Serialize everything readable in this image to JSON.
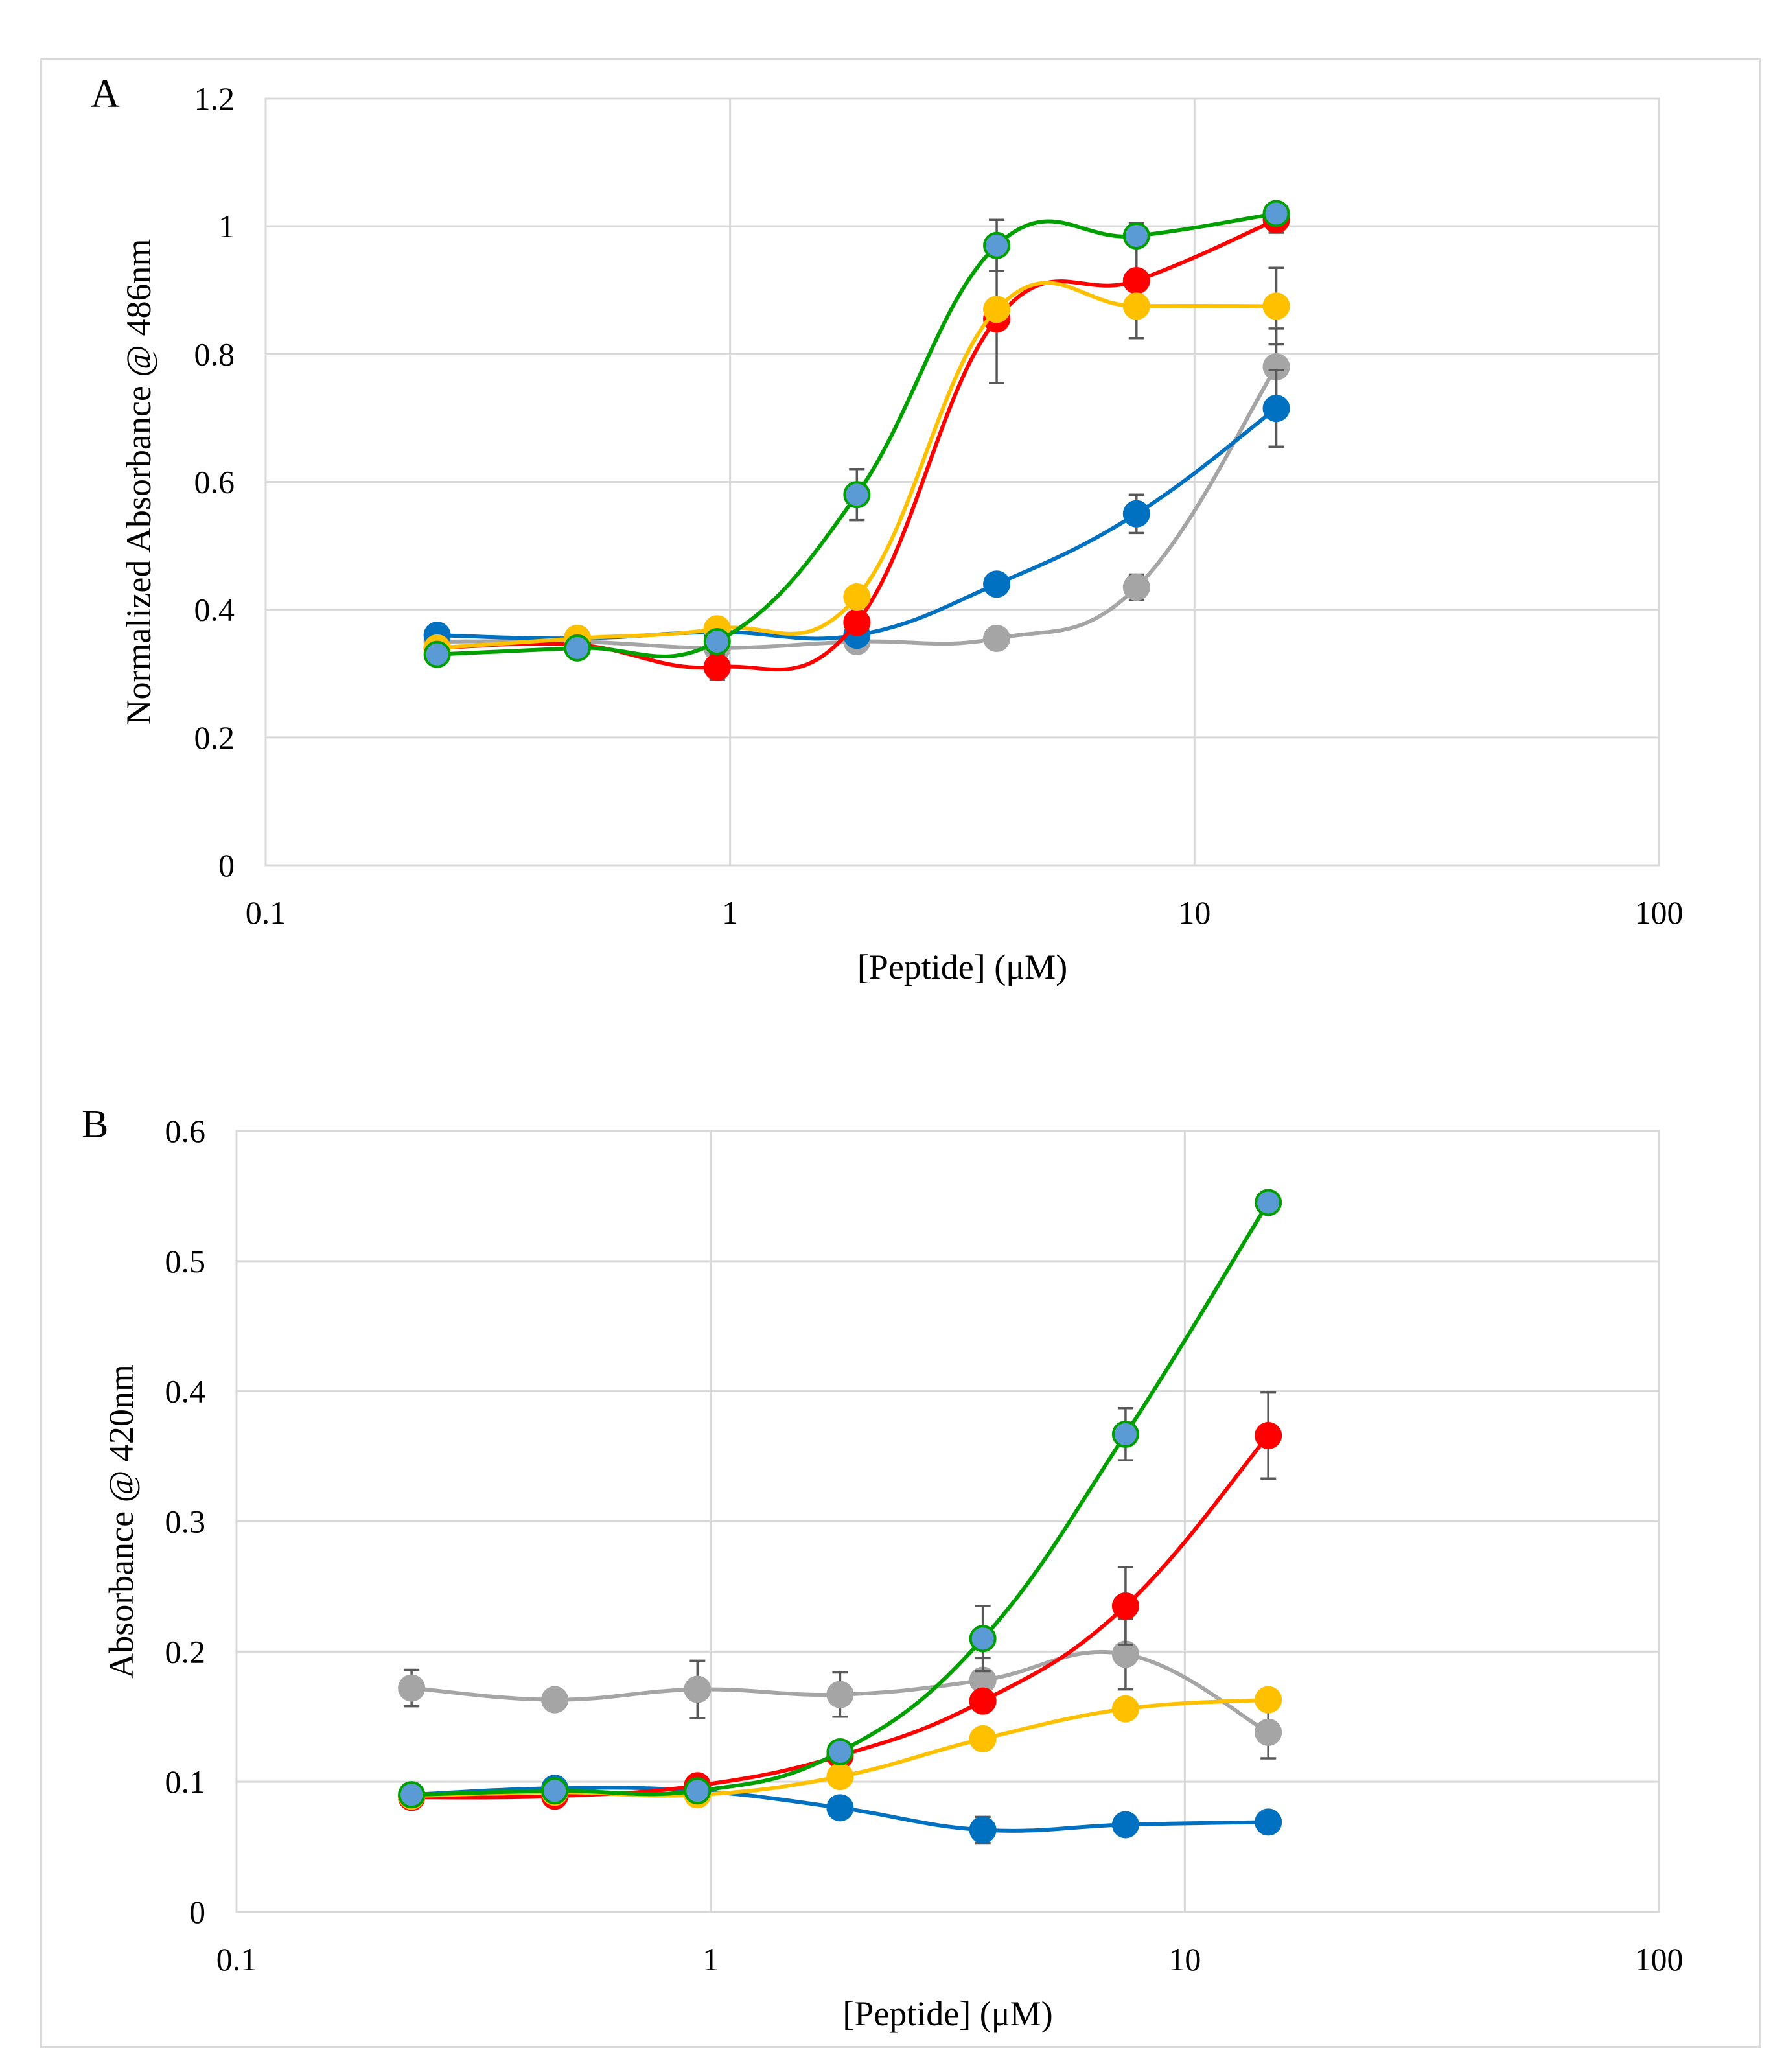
{
  "chart_data": [
    {
      "panel": "A",
      "type": "line",
      "title": "",
      "xlabel": "[Peptide]  (μM)",
      "ylabel": "Normalized  Absorbance @ 486nm",
      "xscale": "log",
      "xlim": [
        0.1,
        100
      ],
      "ylim": [
        0,
        1.2
      ],
      "xticks": [
        0.1,
        1,
        10,
        100
      ],
      "xtick_labels": [
        "0.1",
        "1",
        "10",
        "100"
      ],
      "yticks": [
        0,
        0.2,
        0.4,
        0.6,
        0.8,
        1,
        1.2
      ],
      "ytick_labels": [
        "0",
        "0.2",
        "0.4",
        "0.6",
        "0.8",
        "1",
        "1.2"
      ],
      "grid": true,
      "legend": "none",
      "x": [
        0.234,
        0.469,
        0.938,
        1.875,
        3.75,
        7.5,
        15
      ],
      "series": [
        {
          "name": "gray",
          "color": "#a5a5a5",
          "marker_edge": "#a5a5a5",
          "values": [
            0.35,
            0.35,
            0.34,
            0.35,
            0.355,
            0.435,
            0.78
          ],
          "errors": [
            0,
            0,
            0,
            0,
            0,
            0.02,
            0.06
          ]
        },
        {
          "name": "blue",
          "color": "#0070c0",
          "marker_edge": "#0070c0",
          "values": [
            0.36,
            0.355,
            0.365,
            0.36,
            0.44,
            0.55,
            0.715
          ],
          "errors": [
            0,
            0,
            0,
            0,
            0,
            0.03,
            0.06
          ]
        },
        {
          "name": "red",
          "color": "#ff0000",
          "marker_edge": "#ff0000",
          "values": [
            0.34,
            0.345,
            0.31,
            0.38,
            0.855,
            0.915,
            1.01
          ],
          "errors": [
            0,
            0,
            0.02,
            0,
            0.1,
            0.09,
            0.02
          ]
        },
        {
          "name": "yellow",
          "color": "#ffc000",
          "marker_edge": "#ffc000",
          "values": [
            0.34,
            0.355,
            0.37,
            0.42,
            0.87,
            0.875,
            0.875
          ],
          "errors": [
            0,
            0,
            0,
            0,
            0,
            0,
            0.06
          ]
        },
        {
          "name": "green",
          "color": "#00a000",
          "marker_fill": "#5b9bd5",
          "marker_edge": "#00a000",
          "values": [
            0.33,
            0.34,
            0.35,
            0.58,
            0.97,
            0.985,
            1.02
          ],
          "errors": [
            0,
            0,
            0,
            0.04,
            0.04,
            0.015,
            0
          ]
        }
      ]
    },
    {
      "panel": "B",
      "type": "line",
      "title": "",
      "xlabel": "[Peptide]  (μM)",
      "ylabel": "Absorbance @ 420nm",
      "xscale": "log",
      "xlim": [
        0.1,
        100
      ],
      "ylim": [
        0,
        0.6
      ],
      "xticks": [
        0.1,
        1,
        10,
        100
      ],
      "xtick_labels": [
        "0.1",
        "1",
        "10",
        "100"
      ],
      "yticks": [
        0,
        0.1,
        0.2,
        0.3,
        0.4,
        0.5,
        0.6
      ],
      "ytick_labels": [
        "0",
        "0.1",
        "0.2",
        "0.3",
        "0.4",
        "0.5",
        "0.6"
      ],
      "grid": true,
      "legend": "none",
      "x": [
        0.234,
        0.469,
        0.938,
        1.875,
        3.75,
        7.5,
        15
      ],
      "series": [
        {
          "name": "gray",
          "color": "#a5a5a5",
          "marker_edge": "#a5a5a5",
          "values": [
            0.172,
            0.163,
            0.171,
            0.167,
            0.178,
            0.198,
            0.138
          ],
          "errors": [
            0.014,
            0,
            0.022,
            0.017,
            0.017,
            0.027,
            0.02
          ]
        },
        {
          "name": "blue",
          "color": "#0070c0",
          "marker_edge": "#0070c0",
          "values": [
            0.09,
            0.095,
            0.093,
            0.08,
            0.063,
            0.067,
            0.069
          ],
          "errors": [
            0,
            0,
            0,
            0,
            0.01,
            0,
            0.006
          ]
        },
        {
          "name": "red",
          "color": "#ff0000",
          "marker_edge": "#ff0000",
          "values": [
            0.088,
            0.089,
            0.097,
            0.12,
            0.162,
            0.235,
            0.366
          ],
          "errors": [
            0,
            0,
            0,
            0,
            0,
            0.03,
            0.033
          ]
        },
        {
          "name": "yellow",
          "color": "#ffc000",
          "marker_edge": "#ffc000",
          "values": [
            0.089,
            0.092,
            0.09,
            0.104,
            0.133,
            0.156,
            0.163
          ],
          "errors": [
            0,
            0,
            0,
            0,
            0,
            0,
            0
          ]
        },
        {
          "name": "green",
          "color": "#00a000",
          "marker_fill": "#5b9bd5",
          "marker_edge": "#00a000",
          "values": [
            0.09,
            0.093,
            0.093,
            0.123,
            0.21,
            0.367,
            0.545
          ],
          "errors": [
            0,
            0,
            0,
            0,
            0.025,
            0.02,
            0
          ]
        }
      ]
    }
  ]
}
